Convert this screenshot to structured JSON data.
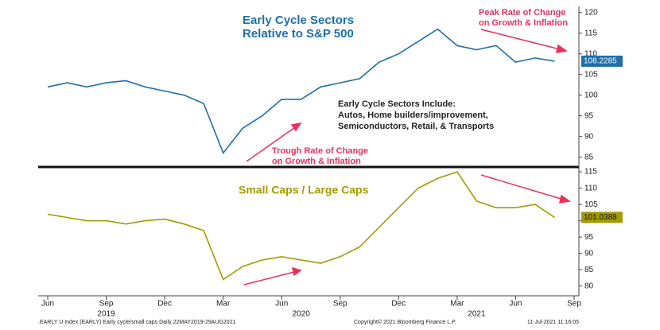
{
  "chart_data": [
    {
      "type": "line",
      "title": [
        "Early Cycle Sectors",
        "Relative to S&P 500"
      ],
      "annotations": {
        "peak": [
          "Peak Rate of Change",
          "on Growth & Inflation"
        ],
        "trough": [
          "Trough Rate of Change",
          "on Growth & Inflation"
        ],
        "box": [
          "Early Cycle Sectors Include:",
          "Autos, Home builders/improvement,",
          "Semiconductors, Retail, & Transports"
        ]
      },
      "x": [
        "2019-06",
        "2019-07",
        "2019-08",
        "2019-09",
        "2019-10",
        "2019-11",
        "2019-12",
        "2020-01",
        "2020-02",
        "2020-03",
        "2020-04",
        "2020-05",
        "2020-06",
        "2020-07",
        "2020-08",
        "2020-09",
        "2020-10",
        "2020-11",
        "2020-12",
        "2021-01",
        "2021-02",
        "2021-03",
        "2021-04",
        "2021-05",
        "2021-06",
        "2021-07",
        "2021-08"
      ],
      "series": [
        {
          "name": "Early Cycle Sectors Relative to S&P 500",
          "color": "#1f6fa8",
          "values": [
            102,
            103,
            102,
            103,
            103.5,
            102,
            101,
            100,
            98,
            86,
            92,
            95,
            99,
            99,
            102,
            103,
            104,
            108,
            110,
            113,
            116,
            112,
            111,
            112,
            108,
            109,
            108.2285
          ]
        }
      ],
      "xlim": [
        "2019-06",
        "2021-09"
      ],
      "ylim": [
        83,
        121.5
      ],
      "yticks": [
        85,
        90,
        95,
        100,
        105,
        110,
        115,
        120
      ]
    },
    {
      "type": "line",
      "title": "Small Caps / Large Caps",
      "x": [
        "2019-06",
        "2019-07",
        "2019-08",
        "2019-09",
        "2019-10",
        "2019-11",
        "2019-12",
        "2020-01",
        "2020-02",
        "2020-03",
        "2020-04",
        "2020-05",
        "2020-06",
        "2020-07",
        "2020-08",
        "2020-09",
        "2020-10",
        "2020-11",
        "2020-12",
        "2021-01",
        "2021-02",
        "2021-03",
        "2021-04",
        "2021-05",
        "2021-06",
        "2021-07",
        "2021-08"
      ],
      "series": [
        {
          "name": "Small Caps / Large Caps",
          "color": "#a39c00",
          "values": [
            102,
            101,
            100,
            100,
            99,
            100,
            100.5,
            99,
            97,
            82,
            86,
            88,
            89,
            88,
            87,
            89,
            92,
            98,
            104,
            110,
            113,
            115,
            106,
            104,
            104,
            105,
            101.0388
          ]
        }
      ],
      "xlim": [
        "2019-06",
        "2021-09"
      ],
      "ylim": [
        77,
        116
      ],
      "yticks": [
        80,
        85,
        90,
        95,
        100,
        105,
        110,
        115
      ],
      "xticks": [
        {
          "value": "2019-06",
          "label": "Jun"
        },
        {
          "value": "2019-09",
          "label": "Sep"
        },
        {
          "value": "2019-12",
          "label": "Dec"
        },
        {
          "value": "2020-03",
          "label": "Mar"
        },
        {
          "value": "2020-06",
          "label": "Jun"
        },
        {
          "value": "2020-09",
          "label": "Sep"
        },
        {
          "value": "2020-12",
          "label": "Dec"
        },
        {
          "value": "2021-03",
          "label": "Mar"
        },
        {
          "value": "2021-06",
          "label": "Jun"
        },
        {
          "value": "2021-09",
          "label": "Sep"
        }
      ],
      "year_labels": [
        {
          "value": "2019-09",
          "label": "2019"
        },
        {
          "value": "2020-07",
          "label": "2020"
        },
        {
          "value": "2021-04",
          "label": "2021"
        }
      ]
    }
  ],
  "footer": {
    "left": ".EARLY U Index (EARLY) Early cycle/small caps  Daily 22MAY2019-29AUG2021",
    "center": "Copyright© 2021 Bloomberg Finance L.P.",
    "right": "11-Jul-2021 11:16:05"
  }
}
